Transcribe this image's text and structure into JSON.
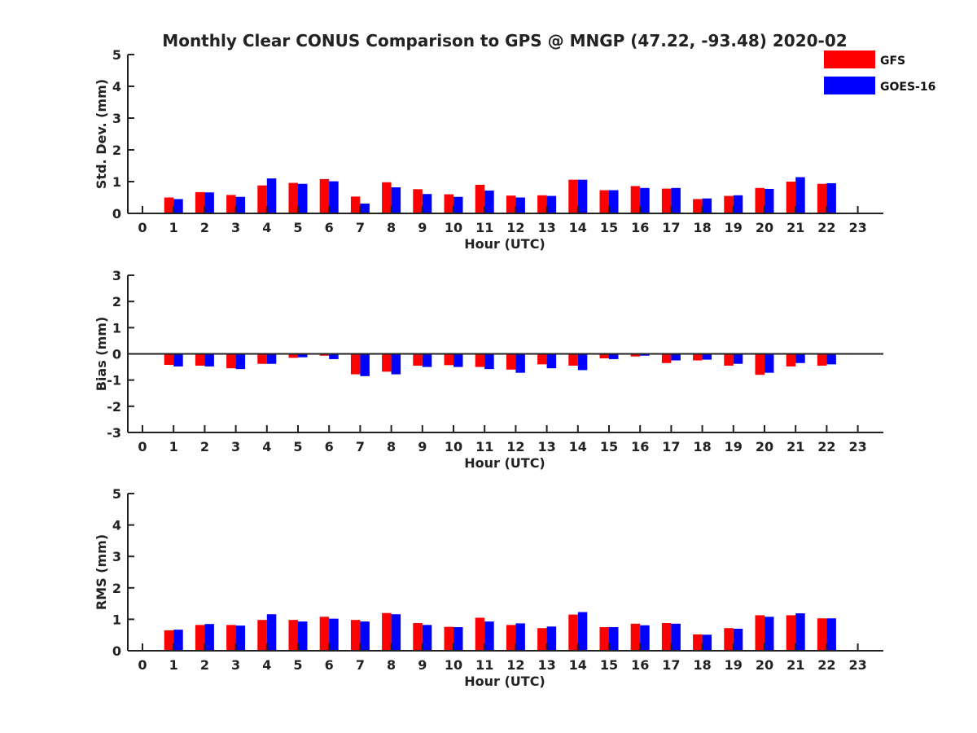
{
  "title": "Monthly Clear CONUS Comparison to GPS @ MNGP (47.22, -93.48) 2020-02",
  "colors": {
    "GFS": "#ff0000",
    "GOES-16": "#0000ff",
    "axis": "#222222"
  },
  "legend": [
    {
      "name": "GFS",
      "color": "#ff0000"
    },
    {
      "name": "GOES-16",
      "color": "#0000ff"
    }
  ],
  "chart_data": [
    {
      "type": "bar",
      "ylabel": "Std. Dev. (mm)",
      "xlabel": "Hour (UTC)",
      "ylim": [
        0,
        5
      ],
      "yticks": [
        "0",
        "1",
        "2",
        "3",
        "4",
        "5"
      ],
      "categories": [
        "0",
        "1",
        "2",
        "3",
        "4",
        "5",
        "6",
        "7",
        "8",
        "9",
        "10",
        "11",
        "12",
        "13",
        "14",
        "15",
        "16",
        "17",
        "18",
        "19",
        "20",
        "21",
        "22",
        "23"
      ],
      "series": [
        {
          "name": "GFS",
          "values": [
            null,
            0.5,
            0.67,
            0.58,
            0.88,
            0.96,
            1.08,
            0.53,
            0.98,
            0.76,
            0.6,
            0.9,
            0.56,
            0.57,
            1.06,
            0.73,
            0.86,
            0.78,
            0.45,
            0.55,
            0.8,
            1.0,
            0.93,
            null
          ]
        },
        {
          "name": "GOES-16",
          "values": [
            null,
            0.45,
            0.66,
            0.52,
            1.1,
            0.93,
            1.01,
            0.31,
            0.82,
            0.61,
            0.52,
            0.72,
            0.5,
            0.55,
            1.06,
            0.73,
            0.8,
            0.8,
            0.47,
            0.57,
            0.77,
            1.14,
            0.95,
            null
          ]
        }
      ]
    },
    {
      "type": "bar",
      "ylabel": "Bias (mm)",
      "xlabel": "Hour (UTC)",
      "ylim": [
        -3,
        3
      ],
      "yticks": [
        "-3",
        "-2",
        "-1",
        "0",
        "1",
        "2",
        "3"
      ],
      "categories": [
        "0",
        "1",
        "2",
        "3",
        "4",
        "5",
        "6",
        "7",
        "8",
        "9",
        "10",
        "11",
        "12",
        "13",
        "14",
        "15",
        "16",
        "17",
        "18",
        "19",
        "20",
        "21",
        "22",
        "23"
      ],
      "series": [
        {
          "name": "GFS",
          "values": [
            null,
            -0.42,
            -0.45,
            -0.55,
            -0.38,
            -0.15,
            -0.07,
            -0.78,
            -0.68,
            -0.45,
            -0.43,
            -0.5,
            -0.6,
            -0.4,
            -0.45,
            -0.17,
            -0.1,
            -0.35,
            -0.25,
            -0.45,
            -0.8,
            -0.48,
            -0.45,
            null
          ]
        },
        {
          "name": "GOES-16",
          "values": [
            null,
            -0.48,
            -0.48,
            -0.58,
            -0.38,
            -0.13,
            -0.2,
            -0.85,
            -0.78,
            -0.5,
            -0.5,
            -0.58,
            -0.72,
            -0.55,
            -0.62,
            -0.2,
            -0.07,
            -0.25,
            -0.22,
            -0.38,
            -0.72,
            -0.35,
            -0.4,
            null
          ]
        }
      ]
    },
    {
      "type": "bar",
      "ylabel": "RMS (mm)",
      "xlabel": "Hour (UTC)",
      "ylim": [
        0,
        5
      ],
      "yticks": [
        "0",
        "1",
        "2",
        "3",
        "4",
        "5"
      ],
      "categories": [
        "0",
        "1",
        "2",
        "3",
        "4",
        "5",
        "6",
        "7",
        "8",
        "9",
        "10",
        "11",
        "12",
        "13",
        "14",
        "15",
        "16",
        "17",
        "18",
        "19",
        "20",
        "21",
        "22",
        "23"
      ],
      "series": [
        {
          "name": "GFS",
          "values": [
            null,
            0.65,
            0.82,
            0.82,
            0.98,
            0.98,
            1.08,
            0.98,
            1.2,
            0.88,
            0.76,
            1.05,
            0.82,
            0.72,
            1.15,
            0.75,
            0.86,
            0.88,
            0.52,
            0.72,
            1.13,
            1.13,
            1.03,
            null
          ]
        },
        {
          "name": "GOES-16",
          "values": [
            null,
            0.67,
            0.85,
            0.8,
            1.16,
            0.93,
            1.02,
            0.93,
            1.16,
            0.82,
            0.75,
            0.93,
            0.87,
            0.77,
            1.23,
            0.75,
            0.81,
            0.86,
            0.51,
            0.7,
            1.08,
            1.19,
            1.03,
            null
          ]
        }
      ]
    }
  ]
}
